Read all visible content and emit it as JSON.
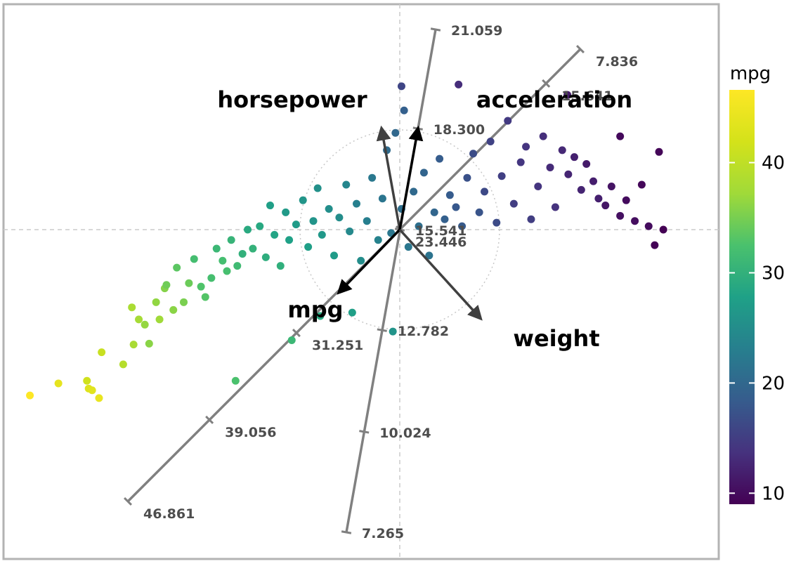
{
  "chart_data": {
    "type": "scatter",
    "subtype": "biplot",
    "title": "",
    "xlabel": "",
    "ylabel": "",
    "xlim": [
      -4.6,
      3.3
    ],
    "ylim": [
      -3.2,
      2.4
    ],
    "grid": false,
    "colorbar": {
      "title": "mpg",
      "range": [
        9,
        46.6
      ],
      "ticks": [
        10,
        20,
        30,
        40
      ],
      "colormap": "viridis"
    },
    "colors": {
      "frame": "#b3b3b3",
      "axis_line": "#808080",
      "reference_line": "#cccccc",
      "arrow_black": "#000000",
      "arrow_gray": "#404040",
      "tick_text": "#4d4d4d"
    },
    "variables": [
      {
        "name": "horsepower",
        "loading": [
          -0.18,
          1.0
        ]
      },
      {
        "name": "acceleration",
        "loading": [
          0.18,
          1.0
        ]
      },
      {
        "name": "mpg",
        "loading": [
          -0.6,
          -0.62
        ]
      },
      {
        "name": "weight",
        "loading": [
          0.8,
          -0.88
        ]
      }
    ],
    "calibrated_axes": [
      {
        "name": "diagonal axis",
        "ticks": [
          {
            "label": "7.836",
            "t": 1.0
          },
          {
            "label": "15.641",
            "t": 0.81
          },
          {
            "label": "23.446",
            "t": 0.0
          },
          {
            "label": "31.251",
            "t": -0.38
          },
          {
            "label": "39.056",
            "t": -0.7
          },
          {
            "label": "46.861",
            "t": -1.0
          }
        ]
      },
      {
        "name": "near-vertical axis",
        "ticks": [
          {
            "label": "21.059",
            "t": 1.0
          },
          {
            "label": "18.300",
            "t": 0.505
          },
          {
            "label": "15.541",
            "t": 0.0
          },
          {
            "label": "12.782",
            "t": -0.465
          },
          {
            "label": "10.024",
            "t": -0.935
          },
          {
            "label": "7.265",
            "t": -1.4
          }
        ]
      }
    ],
    "points": [
      [
        -4.28,
        -1.92,
        46.6
      ],
      [
        -3.95,
        -1.78,
        44.0
      ],
      [
        -3.6,
        -1.84,
        43.1
      ],
      [
        -3.56,
        -1.86,
        43.4
      ],
      [
        -3.62,
        -1.75,
        41.5
      ],
      [
        -3.48,
        -1.95,
        44.3
      ],
      [
        -3.45,
        -1.42,
        40.8
      ],
      [
        -3.2,
        -1.56,
        39.1
      ],
      [
        -3.08,
        -1.33,
        38.0
      ],
      [
        -3.02,
        -1.04,
        37.7
      ],
      [
        -3.1,
        -0.9,
        38.1
      ],
      [
        -2.95,
        -1.1,
        36.6
      ],
      [
        -2.9,
        -1.32,
        36.0
      ],
      [
        -2.82,
        -0.84,
        36.4
      ],
      [
        -2.78,
        -1.04,
        37.2
      ],
      [
        -2.72,
        -0.68,
        35.7
      ],
      [
        -2.7,
        -0.64,
        34.5
      ],
      [
        -2.62,
        -0.93,
        36.0
      ],
      [
        -2.58,
        -0.44,
        33.5
      ],
      [
        -2.5,
        -0.84,
        35.1
      ],
      [
        -2.44,
        -0.62,
        34.3
      ],
      [
        -2.38,
        -0.34,
        31.9
      ],
      [
        -2.3,
        -0.66,
        32.8
      ],
      [
        -2.25,
        -0.78,
        33.0
      ],
      [
        -2.18,
        -0.56,
        32.1
      ],
      [
        -2.12,
        -0.22,
        31.0
      ],
      [
        -2.05,
        -0.36,
        32.0
      ],
      [
        -2.0,
        -0.48,
        32.2
      ],
      [
        -1.95,
        -0.12,
        30.5
      ],
      [
        -1.88,
        -0.42,
        31.5
      ],
      [
        -1.82,
        -0.28,
        30.0
      ],
      [
        -1.76,
        0.0,
        29.0
      ],
      [
        -1.7,
        -0.22,
        30.2
      ],
      [
        -1.62,
        0.04,
        28.8
      ],
      [
        -1.55,
        -0.32,
        29.5
      ],
      [
        -1.5,
        0.28,
        27.5
      ],
      [
        -1.45,
        -0.06,
        28.2
      ],
      [
        -1.38,
        -0.42,
        29.8
      ],
      [
        -1.32,
        0.2,
        26.8
      ],
      [
        -1.28,
        -0.12,
        27.8
      ],
      [
        -1.2,
        0.06,
        27.0
      ],
      [
        -1.12,
        0.34,
        26.2
      ],
      [
        -1.06,
        -0.2,
        27.5
      ],
      [
        -1.0,
        0.1,
        26.0
      ],
      [
        -0.95,
        0.48,
        25.5
      ],
      [
        -0.9,
        -0.06,
        26.5
      ],
      [
        -0.82,
        0.24,
        25.2
      ],
      [
        -0.76,
        -0.3,
        27.0
      ],
      [
        -0.7,
        0.14,
        25.0
      ],
      [
        -0.62,
        0.52,
        24.0
      ],
      [
        -0.58,
        -0.02,
        24.5
      ],
      [
        -0.5,
        0.3,
        23.2
      ],
      [
        -0.45,
        -0.36,
        25.0
      ],
      [
        -0.38,
        0.1,
        23.0
      ],
      [
        -0.32,
        0.6,
        22.2
      ],
      [
        -0.25,
        -0.12,
        23.5
      ],
      [
        -0.2,
        0.36,
        21.8
      ],
      [
        -0.15,
        0.92,
        20.4
      ],
      [
        -0.1,
        -0.04,
        22.0
      ],
      [
        -0.05,
        1.12,
        20.0
      ],
      [
        0.02,
        0.24,
        21.0
      ],
      [
        0.05,
        1.38,
        19.0
      ],
      [
        0.1,
        -0.2,
        22.0
      ],
      [
        0.16,
        0.44,
        20.2
      ],
      [
        0.22,
        0.04,
        21.0
      ],
      [
        0.28,
        0.66,
        19.5
      ],
      [
        0.34,
        -0.3,
        21.5
      ],
      [
        0.4,
        0.2,
        19.8
      ],
      [
        0.46,
        0.82,
        18.5
      ],
      [
        0.52,
        0.12,
        19.0
      ],
      [
        0.58,
        0.4,
        18.4
      ],
      [
        0.65,
        0.26,
        18.0
      ],
      [
        0.72,
        0.04,
        18.2
      ],
      [
        0.78,
        0.6,
        17.2
      ],
      [
        0.85,
        0.88,
        16.6
      ],
      [
        0.92,
        0.2,
        17.5
      ],
      [
        0.98,
        0.44,
        16.3
      ],
      [
        1.05,
        1.02,
        15.5
      ],
      [
        1.12,
        0.08,
        16.5
      ],
      [
        1.18,
        0.62,
        15.2
      ],
      [
        1.25,
        1.26,
        14.6
      ],
      [
        1.32,
        0.3,
        15.0
      ],
      [
        1.4,
        0.78,
        14.2
      ],
      [
        1.46,
        0.96,
        14.0
      ],
      [
        1.52,
        0.12,
        15.0
      ],
      [
        1.6,
        0.5,
        14.0
      ],
      [
        1.66,
        1.08,
        13.4
      ],
      [
        1.74,
        0.72,
        13.0
      ],
      [
        1.8,
        0.26,
        13.8
      ],
      [
        1.88,
        0.92,
        12.8
      ],
      [
        1.95,
        0.64,
        12.5
      ],
      [
        2.02,
        0.84,
        12.0
      ],
      [
        2.1,
        0.46,
        12.4
      ],
      [
        2.16,
        0.76,
        11.4
      ],
      [
        2.24,
        0.56,
        11.8
      ],
      [
        2.3,
        0.36,
        11.9
      ],
      [
        2.38,
        0.28,
        11.0
      ],
      [
        2.45,
        0.5,
        10.8
      ],
      [
        2.55,
        0.16,
        10.4
      ],
      [
        2.62,
        0.34,
        10.0
      ],
      [
        2.72,
        0.1,
        10.2
      ],
      [
        2.8,
        0.52,
        9.6
      ],
      [
        2.88,
        0.04,
        10.0
      ],
      [
        2.95,
        -0.18,
        9.2
      ],
      [
        3.05,
        0.0,
        9.0
      ],
      [
        3.0,
        0.9,
        9.5
      ],
      [
        2.55,
        1.08,
        9.8
      ],
      [
        1.94,
        1.56,
        11.5
      ],
      [
        0.68,
        1.68,
        13.2
      ],
      [
        0.02,
        1.66,
        15.8
      ],
      [
        -0.92,
        -1.0,
        29.0
      ],
      [
        -1.25,
        -1.28,
        31.0
      ],
      [
        -1.9,
        -1.75,
        32.5
      ],
      [
        -0.55,
        -0.96,
        27.5
      ],
      [
        -0.08,
        -1.18,
        26.0
      ]
    ]
  }
}
